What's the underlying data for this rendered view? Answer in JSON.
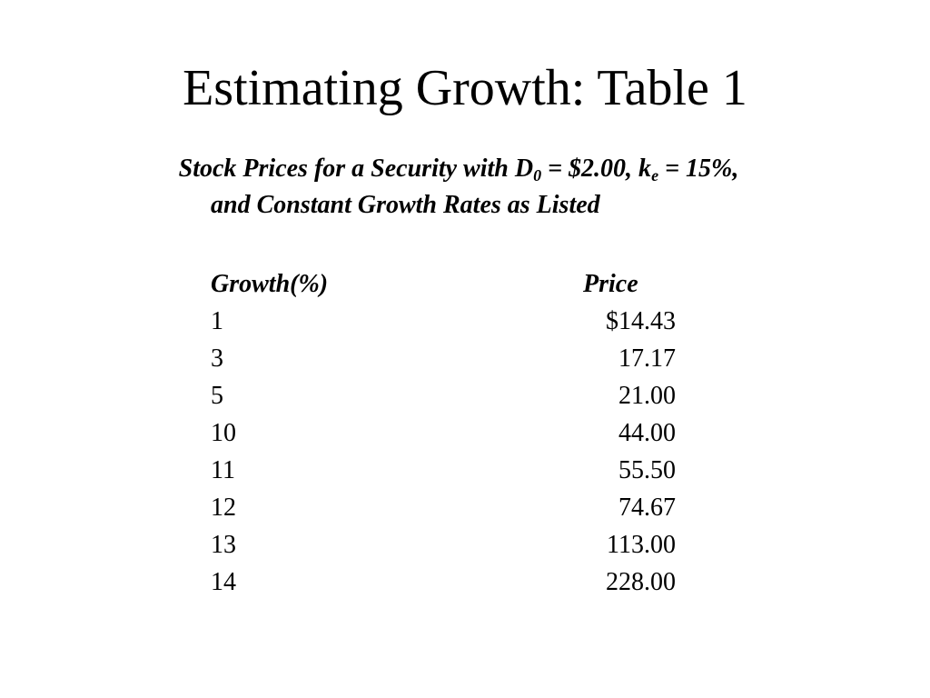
{
  "slide": {
    "title": "Estimating Growth: Table 1"
  },
  "subtitle": {
    "line1_part1": "Stock Prices for a Security with D",
    "line1_sub1": "0",
    "line1_part2": " = $2.00, k",
    "line1_sub2": "e",
    "line1_part3": " = 15%,",
    "line2": "and Constant Growth Rates as Listed"
  },
  "table": {
    "headers": {
      "growth": "Growth(%)",
      "price": "Price"
    },
    "rows": [
      {
        "growth": "1",
        "price": "$14.43"
      },
      {
        "growth": "3",
        "price": "17.17"
      },
      {
        "growth": "5",
        "price": "21.00"
      },
      {
        "growth": "10",
        "price": "44.00"
      },
      {
        "growth": "11",
        "price": "55.50"
      },
      {
        "growth": "12",
        "price": "74.67"
      },
      {
        "growth": "13",
        "price": "113.00"
      },
      {
        "growth": "14",
        "price": "228.00"
      }
    ]
  }
}
